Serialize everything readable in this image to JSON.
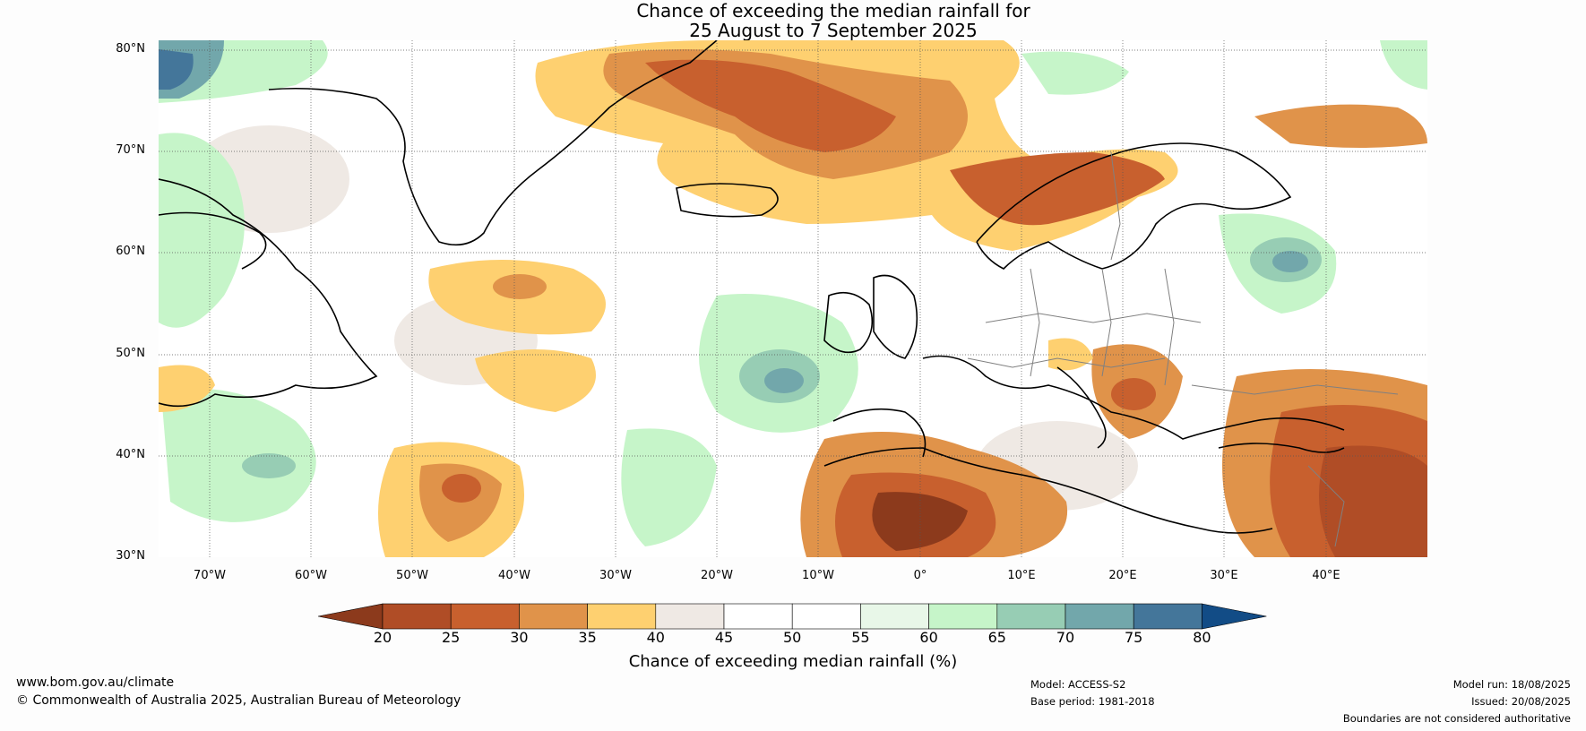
{
  "title": {
    "line1": "Chance of exceeding the median rainfall for",
    "line2": "25 August to 7 September 2025"
  },
  "map": {
    "lat_labels": [
      "80°N",
      "70°N",
      "60°N",
      "50°N",
      "40°N",
      "30°N"
    ],
    "lon_labels": [
      "70°W",
      "60°W",
      "50°W",
      "40°W",
      "30°W",
      "20°W",
      "10°W",
      "0°",
      "10°E",
      "20°E",
      "30°E",
      "40°E"
    ],
    "extent": {
      "lon": [
        -75,
        50
      ],
      "lat": [
        30,
        81
      ]
    }
  },
  "colorbar": {
    "label": "Chance of exceeding median rainfall (%)",
    "ticks": [
      "20",
      "25",
      "30",
      "35",
      "40",
      "45",
      "50",
      "55",
      "60",
      "65",
      "70",
      "75",
      "80"
    ],
    "colors": [
      "#8c3a1c",
      "#b04d26",
      "#c8602e",
      "#e0934a",
      "#fed070",
      "#efe9e4",
      "#ffffff",
      "#ffffff",
      "#e8f7e8",
      "#c6f5c9",
      "#97cdb4",
      "#72a7ab",
      "#44769a",
      "#124c86"
    ]
  },
  "footer": {
    "website": "www.bom.gov.au/climate",
    "copyright": "© Commonwealth of Australia 2025, Australian Bureau of Meteorology",
    "model": "Model: ACCESS-S2",
    "base_period": "Base period: 1981-2018",
    "model_run": "Model run: 18/08/2025",
    "issued": "Issued: 20/08/2025",
    "disclaimer": "Boundaries are not considered authoritative"
  }
}
